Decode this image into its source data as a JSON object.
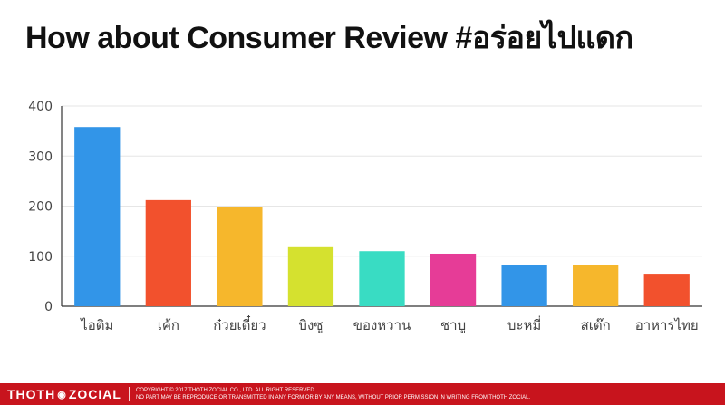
{
  "title": "How about Consumer Review #อร่อยไปแดก",
  "chart_data": {
    "type": "bar",
    "categories": [
      "ไอติม",
      "เค้ก",
      "ก๋วยเตี๋ยว",
      "บิงซู",
      "ของหวาน",
      "ชาบู",
      "บะหมี่",
      "สเต๊ก",
      "อาหารไทย"
    ],
    "values": [
      358,
      212,
      198,
      118,
      110,
      105,
      82,
      82,
      65
    ],
    "colors": [
      "#3295e8",
      "#f2512d",
      "#f6b72c",
      "#d5e12f",
      "#39dcc3",
      "#e63c97",
      "#3295e8",
      "#f6b72c",
      "#f2512d"
    ],
    "yticks": [
      0,
      100,
      200,
      300,
      400
    ],
    "ylim": [
      0,
      400
    ],
    "grid": true,
    "legend": "none"
  },
  "footer": {
    "brand_left": "THOTH",
    "brand_symbol": "◉",
    "brand_right": "ZOCIAL",
    "copyright": "COPYRIGHT © 2017 THOTH ZOCIAL CO., LTD. ALL RIGHT RESERVED.",
    "notice": "NO PART MAY BE REPRODUCE OR TRANSMITTED IN ANY FORM OR BY ANY MEANS, WITHOUT PRIOR PERMISSION IN WRITING FROM THOTH ZOCIAL."
  }
}
